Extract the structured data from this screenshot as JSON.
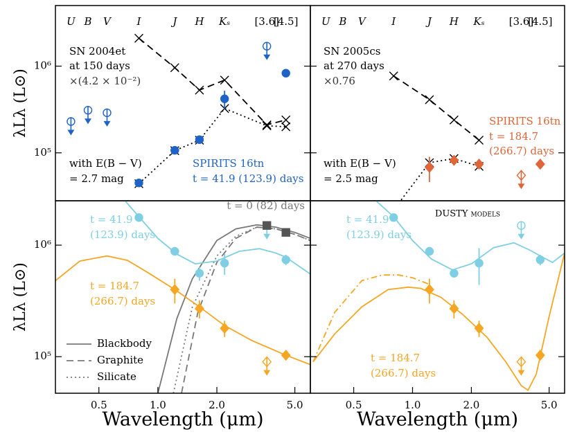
{
  "chart_data": [
    {
      "type": "line",
      "ylabel": "λLλ (L⊙)",
      "xlim": [
        0.3,
        6
      ],
      "ylim": [
        28000,
        5000000
      ],
      "yticks": [
        {
          "value": 100000,
          "label": "10⁵"
        },
        {
          "value": 1000000,
          "label": "10⁶"
        }
      ],
      "bands": [
        {
          "label": "U",
          "wavelength": 0.36
        },
        {
          "label": "B",
          "wavelength": 0.44
        },
        {
          "label": "V",
          "wavelength": 0.55
        },
        {
          "label": "I",
          "wavelength": 0.8
        },
        {
          "label": "J",
          "wavelength": 1.22
        },
        {
          "label": "H",
          "wavelength": 1.63
        },
        {
          "label": "Kₛ",
          "wavelength": 2.19
        },
        {
          "label": "[3.6]",
          "wavelength": 3.6
        },
        {
          "label": "[4.5]",
          "wavelength": 4.5
        }
      ],
      "annotations": [
        "SN 2004et",
        "at 150 days",
        "×(4.2 × 10⁻²)",
        "with E(B − V)",
        "= 2.7 mag",
        "SPIRITS 16tn",
        "t = 41.9 (123.9) days"
      ],
      "series": [
        {
          "color": "#000000",
          "line": "dashed",
          "marker": "x",
          "x": [
            0.8,
            1.22,
            1.63,
            2.19,
            3.6,
            4.5
          ],
          "values": [
            2100000,
            960000,
            530000,
            690000,
            210000,
            240000
          ]
        },
        {
          "color": "#000000",
          "line": "dotted",
          "marker": "x",
          "x": [
            0.8,
            1.22,
            1.63,
            2.19,
            3.6,
            4.5
          ],
          "values": [
            44000,
            106000,
            140000,
            325000,
            205000,
            200000
          ]
        },
        {
          "color": "#1f63c6",
          "marker": "circle",
          "x": [
            0.8,
            1.22,
            1.63,
            2.19,
            4.5
          ],
          "values": [
            45000,
            107000,
            142000,
            420000,
            830000
          ],
          "errors": [
            null,
            null,
            null,
            100000,
            80000
          ]
        },
        {
          "color": "#1f63c6",
          "marker": "open-circle",
          "upper_limit": true,
          "x": [
            0.36,
            0.44,
            0.55,
            3.6
          ],
          "values": [
            230000,
            310000,
            290000,
            1700000
          ]
        }
      ]
    },
    {
      "type": "line",
      "xlim": [
        0.3,
        6
      ],
      "ylim": [
        28000,
        5000000
      ],
      "yticks": [
        100000,
        1000000
      ],
      "bands": [
        {
          "label": "U",
          "wavelength": 0.36
        },
        {
          "label": "B",
          "wavelength": 0.44
        },
        {
          "label": "V",
          "wavelength": 0.55
        },
        {
          "label": "I",
          "wavelength": 0.8
        },
        {
          "label": "J",
          "wavelength": 1.22
        },
        {
          "label": "H",
          "wavelength": 1.63
        },
        {
          "label": "Kₛ",
          "wavelength": 2.19
        },
        {
          "label": "[3.6]",
          "wavelength": 3.6
        },
        {
          "label": "[4.5]",
          "wavelength": 4.5
        }
      ],
      "annotations": [
        "SN 2005cs",
        "at 270 days",
        "×0.76",
        "with E(B − V)",
        "= 2.5 mag",
        "SPIRITS 16tn",
        "t = 184.7",
        "(266.7) days"
      ],
      "series": [
        {
          "color": "#000000",
          "line": "dashed",
          "marker": "x",
          "x": [
            0.8,
            1.22,
            1.63,
            2.19
          ],
          "values": [
            770000,
            410000,
            240000,
            140000
          ]
        },
        {
          "color": "#000000",
          "line": "dotted",
          "marker": "x",
          "x": [
            0.8,
            1.22,
            1.63,
            2.19
          ],
          "values": [
            22000,
            77000,
            86000,
            70000
          ]
        },
        {
          "color": "#e06538",
          "marker": "diamond",
          "x": [
            1.22,
            1.63,
            2.19,
            4.5
          ],
          "values": [
            68000,
            82000,
            74000,
            74000
          ],
          "errors": [
            22000,
            10000,
            8000,
            null
          ]
        },
        {
          "color": "#e06538",
          "marker": "open-diamond",
          "upper_limit": true,
          "x": [
            3.6
          ],
          "values": [
            55000
          ]
        }
      ]
    },
    {
      "type": "line",
      "ylabel": "λLλ (L⊙)",
      "xlabel": "Wavelength (μm)",
      "xlim": [
        0.3,
        6
      ],
      "ylim": [
        47000,
        2500000
      ],
      "yticks": [
        {
          "value": 100000,
          "label": "10⁵"
        },
        {
          "value": 1000000,
          "label": "10⁶"
        }
      ],
      "xticks": [
        0.5,
        {
          "value": 1,
          "label": "1.0"
        },
        {
          "value": 2,
          "label": "2.0"
        },
        {
          "value": 5,
          "label": "5.0"
        }
      ],
      "annotations": [
        "t = 41.9",
        "(123.9) days",
        "t = 184.7",
        "(266.7) days",
        "t = 0 (82) days"
      ],
      "series": [
        {
          "name": "Blackbody",
          "color": "#777777",
          "line": "solid",
          "x": [
            1.0,
            1.25,
            1.5,
            2.0,
            2.5,
            3.2,
            4.0,
            5.0,
            6.0
          ],
          "values": [
            47000,
            220000,
            500000,
            1100000,
            1400000,
            1520000,
            1450000,
            1300000,
            1150000
          ]
        },
        {
          "name": "Graphite",
          "color": "#777777",
          "line": "dashed",
          "x": [
            1.32,
            1.6,
            2.0,
            2.5,
            3.2,
            4.0,
            5.0,
            6.0
          ],
          "values": [
            47000,
            250000,
            700000,
            1150000,
            1450000,
            1400000,
            1250000,
            1100000
          ]
        },
        {
          "name": "Silicate",
          "color": "#777777",
          "line": "dotted",
          "x": [
            1.2,
            1.5,
            2.0,
            2.5,
            3.2,
            4.0,
            5.0,
            6.0
          ],
          "values": [
            47000,
            280000,
            800000,
            1200000,
            1450000,
            1400000,
            1250000,
            1100000
          ]
        },
        {
          "color": "#7ecfe3",
          "line": "solid",
          "x": [
            0.68,
            0.8,
            1.0,
            1.25,
            1.55,
            2.0,
            2.6,
            3.3,
            4.0,
            4.5,
            6.0
          ],
          "values": [
            2500000,
            1800000,
            1150000,
            830000,
            680000,
            720000,
            880000,
            930000,
            850000,
            780000,
            550000
          ]
        },
        {
          "color": "#f5a623",
          "line": "solid",
          "x": [
            0.3,
            0.4,
            0.55,
            0.7,
            0.9,
            1.22,
            1.63,
            2.19,
            3.0,
            4.5,
            6.0
          ],
          "values": [
            480000,
            720000,
            800000,
            730000,
            560000,
            400000,
            280000,
            190000,
            140000,
            103000,
            85000
          ]
        },
        {
          "color": "#7ecfe3",
          "marker": "circle",
          "x": [
            0.8,
            1.22,
            1.63,
            2.19,
            4.5
          ],
          "values": [
            1770000,
            880000,
            560000,
            690000,
            740000
          ],
          "errors": [
            null,
            null,
            80000,
            150000,
            80000
          ]
        },
        {
          "color": "#7ecfe3",
          "marker": "open-circle",
          "upper_limit": true,
          "x": [
            3.6
          ],
          "values": [
            1500000
          ]
        },
        {
          "color": "#f5a623",
          "marker": "diamond",
          "x": [
            1.22,
            1.63,
            2.19,
            4.5
          ],
          "values": [
            400000,
            270000,
            180000,
            103000
          ],
          "errors": [
            100000,
            50000,
            30000,
            10000
          ]
        },
        {
          "color": "#f5a623",
          "marker": "open-diamond",
          "upper_limit": true,
          "x": [
            3.6
          ],
          "values": [
            90000
          ]
        },
        {
          "color": "#555555",
          "marker": "square",
          "x": [
            3.6,
            4.5
          ],
          "values": [
            1500000,
            1300000
          ]
        }
      ]
    },
    {
      "type": "line",
      "xlabel": "Wavelength (μm)",
      "xlim": [
        0.3,
        6
      ],
      "ylim": [
        47000,
        2500000
      ],
      "yticks": [
        100000,
        1000000
      ],
      "xticks": [
        0.5,
        {
          "value": 1,
          "label": "1.0"
        },
        {
          "value": 2,
          "label": "2.0"
        },
        {
          "value": 5,
          "label": "5.0"
        }
      ],
      "annotations": [
        "DUSTY models",
        "t = 41.9",
        "(123.9) days",
        "t = 184.7",
        "(266.7) days"
      ],
      "series": [
        {
          "color": "#7ecfe3",
          "line": "solid",
          "x": [
            0.65,
            0.8,
            1.0,
            1.25,
            1.6,
            2.0,
            2.6,
            3.3,
            4.0,
            4.5,
            5.2,
            6.0
          ],
          "values": [
            2500000,
            1800000,
            1100000,
            750000,
            600000,
            680000,
            950000,
            1050000,
            900000,
            800000,
            700000,
            850000
          ]
        },
        {
          "color": "#f5a623",
          "line": "solid",
          "x": [
            0.31,
            0.4,
            0.55,
            0.75,
            0.95,
            1.1,
            1.4,
            1.8,
            2.4,
            3.0,
            3.6,
            3.9,
            4.3,
            5.0,
            6.0
          ],
          "values": [
            90000,
            160000,
            280000,
            400000,
            420000,
            410000,
            340000,
            240000,
            150000,
            90000,
            55000,
            50000,
            70000,
            230000,
            850000
          ]
        },
        {
          "color": "#f5a623",
          "line": "dashdot",
          "x": [
            0.31,
            0.4,
            0.55,
            0.7,
            0.85,
            1.0,
            1.2
          ],
          "values": [
            90000,
            250000,
            480000,
            540000,
            540000,
            510000,
            450000
          ]
        },
        {
          "color": "#7ecfe3",
          "marker": "circle",
          "x": [
            0.8,
            1.22,
            1.63,
            2.19,
            4.5
          ],
          "values": [
            1770000,
            880000,
            560000,
            690000,
            740000
          ],
          "errors": [
            null,
            null,
            null,
            250000,
            80000
          ]
        },
        {
          "color": "#7ecfe3",
          "marker": "open-circle",
          "upper_limit": true,
          "x": [
            3.6
          ],
          "values": [
            1500000
          ]
        },
        {
          "color": "#f5a623",
          "marker": "diamond",
          "x": [
            1.22,
            1.63,
            2.19,
            4.5
          ],
          "values": [
            400000,
            270000,
            180000,
            103000
          ],
          "errors": [
            100000,
            50000,
            30000,
            null
          ]
        },
        {
          "color": "#f5a623",
          "marker": "open-diamond",
          "upper_limit": true,
          "x": [
            3.6
          ],
          "values": [
            90000
          ]
        }
      ]
    }
  ]
}
